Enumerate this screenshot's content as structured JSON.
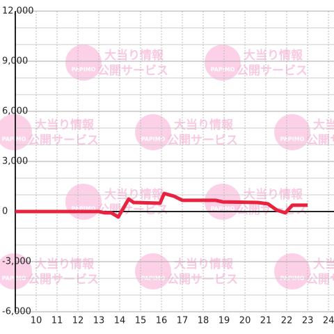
{
  "chart_data": {
    "type": "line",
    "watermark": {
      "logo": "PAPIMO",
      "line1": "大当り情報",
      "line2": "公開サービス"
    },
    "x": [
      9,
      13,
      13.3,
      13.6,
      13.93,
      14.43,
      14.67,
      15.93,
      16.13,
      16.6,
      17,
      18.6,
      18.93,
      20.6,
      21.1,
      21.53,
      21.93,
      22.27,
      23
    ],
    "series": [
      {
        "color": "#e8233f",
        "values": [
          0,
          0,
          -80,
          -80,
          -330,
          750,
          540,
          500,
          1080,
          920,
          670,
          670,
          580,
          540,
          460,
          80,
          -80,
          380,
          380
        ]
      }
    ],
    "xlim": [
      9,
      24.33
    ],
    "xticks": [
      10,
      11,
      12,
      13,
      14,
      15,
      16,
      17,
      18,
      19,
      20,
      21,
      22,
      23,
      24
    ],
    "ylim": [
      -6000,
      12000
    ],
    "yticks": [
      {
        "value": -6000,
        "label": "-6,000"
      },
      {
        "value": -3000,
        "label": "-3,000"
      },
      0,
      {
        "value": 3000,
        "label": "3,000"
      },
      {
        "value": 6000,
        "label": "6,000"
      },
      {
        "value": 9000,
        "label": "9,000"
      },
      {
        "value": 12000,
        "label": "12,000"
      }
    ],
    "minor_yticks": [
      -5000,
      -4000,
      -2000,
      -1000,
      1000,
      2000,
      4000,
      5000,
      7000,
      8000,
      10000,
      11000
    ],
    "grid": true
  }
}
